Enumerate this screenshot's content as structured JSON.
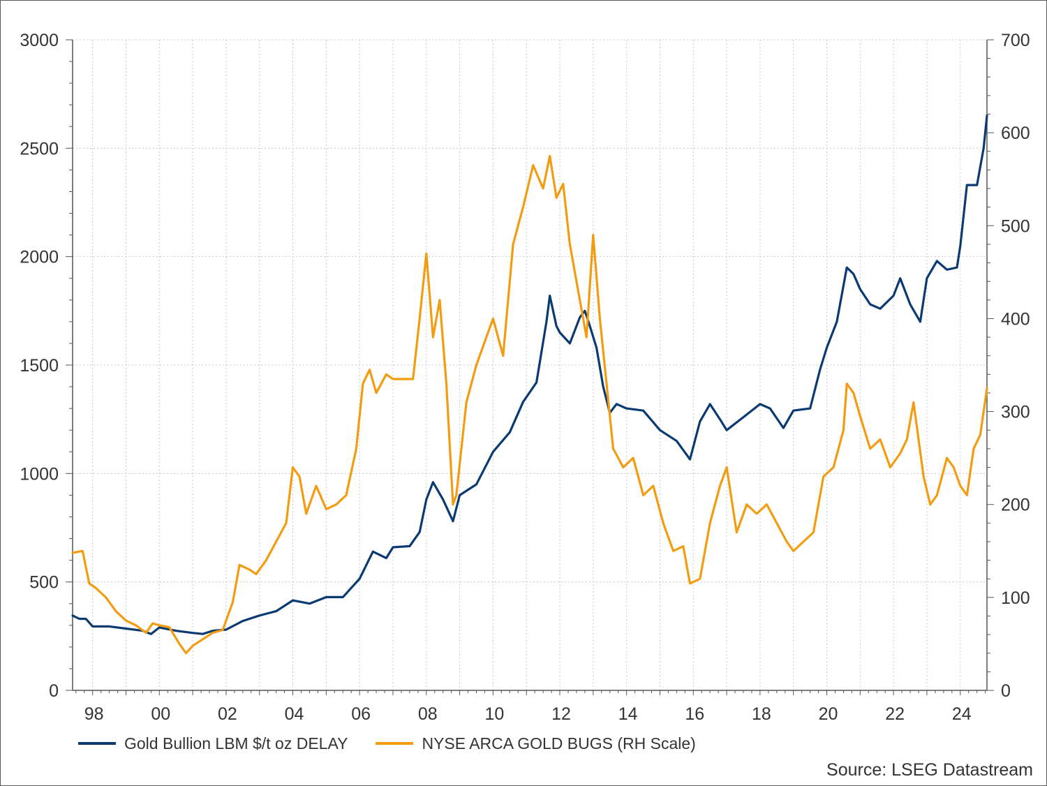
{
  "chart_data": {
    "type": "line",
    "title": "",
    "xlabel": "",
    "ylabel": "",
    "x_ticks": [
      1998,
      2000,
      2002,
      2004,
      2006,
      2008,
      2010,
      2012,
      2014,
      2016,
      2018,
      2020,
      2022,
      2024
    ],
    "x_tick_labels": [
      "98",
      "00",
      "02",
      "04",
      "06",
      "08",
      "10",
      "12",
      "14",
      "16",
      "18",
      "20",
      "22",
      "24"
    ],
    "xlim": [
      1997.4,
      2024.8
    ],
    "y_left": {
      "ylim": [
        0,
        3000
      ],
      "ticks": [
        0,
        500,
        1000,
        1500,
        2000,
        2500,
        3000
      ]
    },
    "y_right": {
      "ylim": [
        0,
        700
      ],
      "ticks": [
        0,
        100,
        200,
        300,
        400,
        500,
        600,
        700
      ]
    },
    "grid": true,
    "legend_position": "bottom-left",
    "series": [
      {
        "name": "Gold Bullion LBM $/t oz DELAY",
        "axis": "left",
        "color": "#0b3a73",
        "x": [
          1997.4,
          1997.6,
          1997.8,
          1998.0,
          1998.5,
          1999.0,
          1999.5,
          1999.75,
          2000.0,
          2000.5,
          2001.0,
          2001.3,
          2001.6,
          2002.0,
          2002.5,
          2003.0,
          2003.5,
          2004.0,
          2004.5,
          2005.0,
          2005.5,
          2006.0,
          2006.4,
          2006.8,
          2007.0,
          2007.5,
          2007.8,
          2008.0,
          2008.2,
          2008.5,
          2008.8,
          2009.0,
          2009.5,
          2010.0,
          2010.5,
          2010.9,
          2011.3,
          2011.6,
          2011.7,
          2011.9,
          2012.0,
          2012.3,
          2012.6,
          2012.75,
          2012.9,
          2013.1,
          2013.3,
          2013.5,
          2013.7,
          2014.0,
          2014.5,
          2015.0,
          2015.5,
          2015.9,
          2016.2,
          2016.5,
          2016.8,
          2017.0,
          2017.5,
          2018.0,
          2018.3,
          2018.7,
          2019.0,
          2019.5,
          2019.8,
          2020.0,
          2020.3,
          2020.6,
          2020.8,
          2021.0,
          2021.3,
          2021.6,
          2022.0,
          2022.2,
          2022.5,
          2022.8,
          2023.0,
          2023.3,
          2023.6,
          2023.9,
          2024.0,
          2024.2,
          2024.5,
          2024.7,
          2024.8
        ],
        "values": [
          345,
          330,
          330,
          295,
          295,
          285,
          275,
          260,
          290,
          275,
          265,
          260,
          275,
          280,
          320,
          345,
          365,
          415,
          400,
          430,
          430,
          515,
          640,
          610,
          660,
          665,
          730,
          880,
          960,
          880,
          780,
          900,
          950,
          1100,
          1190,
          1330,
          1420,
          1700,
          1820,
          1680,
          1650,
          1600,
          1720,
          1750,
          1680,
          1580,
          1400,
          1280,
          1320,
          1300,
          1290,
          1200,
          1150,
          1065,
          1240,
          1320,
          1250,
          1200,
          1260,
          1320,
          1300,
          1210,
          1290,
          1300,
          1480,
          1580,
          1700,
          1950,
          1920,
          1850,
          1780,
          1760,
          1820,
          1900,
          1780,
          1700,
          1900,
          1980,
          1940,
          1950,
          2050,
          2330,
          2330,
          2500,
          2650
        ]
      },
      {
        "name": "NYSE ARCA GOLD BUGS (RH Scale)",
        "axis": "right",
        "color": "#f39c12",
        "x": [
          1997.4,
          1997.7,
          1997.9,
          1998.1,
          1998.4,
          1998.7,
          1999.0,
          1999.3,
          1999.6,
          1999.8,
          2000.0,
          2000.3,
          2000.6,
          2000.8,
          2001.0,
          2001.3,
          2001.6,
          2001.9,
          2002.2,
          2002.4,
          2002.7,
          2002.9,
          2003.2,
          2003.5,
          2003.8,
          2004.0,
          2004.2,
          2004.4,
          2004.7,
          2005.0,
          2005.3,
          2005.6,
          2005.9,
          2006.1,
          2006.3,
          2006.5,
          2006.8,
          2007.0,
          2007.3,
          2007.6,
          2007.8,
          2008.0,
          2008.2,
          2008.4,
          2008.6,
          2008.8,
          2008.9,
          2009.2,
          2009.5,
          2009.8,
          2010.0,
          2010.3,
          2010.6,
          2010.9,
          2011.2,
          2011.5,
          2011.7,
          2011.9,
          2012.1,
          2012.3,
          2012.6,
          2012.8,
          2013.0,
          2013.2,
          2013.4,
          2013.6,
          2013.9,
          2014.2,
          2014.5,
          2014.8,
          2015.1,
          2015.4,
          2015.7,
          2015.9,
          2016.2,
          2016.5,
          2016.8,
          2017.0,
          2017.3,
          2017.6,
          2017.9,
          2018.2,
          2018.5,
          2018.8,
          2019.0,
          2019.3,
          2019.6,
          2019.9,
          2020.2,
          2020.5,
          2020.6,
          2020.8,
          2021.0,
          2021.3,
          2021.6,
          2021.9,
          2022.2,
          2022.4,
          2022.6,
          2022.9,
          2023.1,
          2023.3,
          2023.6,
          2023.8,
          2024.0,
          2024.2,
          2024.4,
          2024.6,
          2024.8
        ],
        "values": [
          148,
          150,
          115,
          110,
          100,
          85,
          75,
          70,
          62,
          72,
          70,
          68,
          50,
          40,
          48,
          55,
          62,
          65,
          95,
          135,
          130,
          125,
          140,
          160,
          180,
          240,
          230,
          190,
          220,
          195,
          200,
          210,
          260,
          330,
          345,
          320,
          340,
          335,
          335,
          335,
          400,
          470,
          380,
          420,
          330,
          200,
          210,
          310,
          350,
          380,
          400,
          360,
          480,
          520,
          565,
          540,
          575,
          530,
          545,
          480,
          420,
          380,
          490,
          400,
          330,
          260,
          240,
          250,
          210,
          220,
          180,
          150,
          155,
          115,
          120,
          180,
          220,
          240,
          170,
          200,
          190,
          200,
          180,
          160,
          150,
          160,
          170,
          230,
          240,
          280,
          330,
          320,
          295,
          260,
          270,
          240,
          255,
          270,
          310,
          230,
          200,
          210,
          250,
          240,
          220,
          210,
          260,
          275,
          325
        ]
      }
    ]
  },
  "source_text": "Source: LSEG Datastream"
}
